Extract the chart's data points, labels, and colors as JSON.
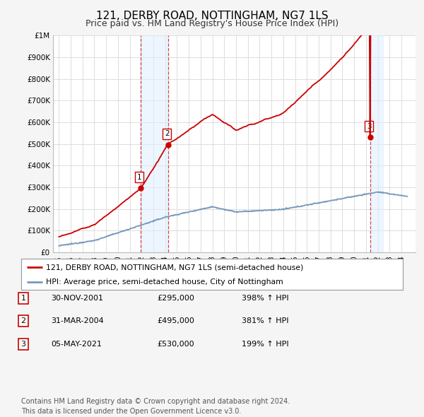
{
  "title": "121, DERBY ROAD, NOTTINGHAM, NG7 1LS",
  "subtitle": "Price paid vs. HM Land Registry's House Price Index (HPI)",
  "title_fontsize": 11,
  "subtitle_fontsize": 9,
  "ylim": [
    0,
    1000000
  ],
  "yticks": [
    0,
    100000,
    200000,
    300000,
    400000,
    500000,
    600000,
    700000,
    800000,
    900000,
    1000000
  ],
  "ytick_labels": [
    "£0",
    "£100K",
    "£200K",
    "£300K",
    "£400K",
    "£500K",
    "£600K",
    "£700K",
    "£800K",
    "£900K",
    "£1M"
  ],
  "background_color": "#f5f5f5",
  "plot_bg_color": "#ffffff",
  "grid_color": "#dddddd",
  "red_line_color": "#cc0000",
  "blue_line_color": "#7799bb",
  "marker_color": "#cc0000",
  "sale_points": [
    {
      "date": 2001.92,
      "price": 295000,
      "label": "1"
    },
    {
      "date": 2004.25,
      "price": 495000,
      "label": "2"
    },
    {
      "date": 2021.37,
      "price": 530000,
      "label": "3"
    }
  ],
  "vline_color": "#cc0000",
  "shade_color": "#ddeeff",
  "shade_alpha": 0.5,
  "legend_entries": [
    "121, DERBY ROAD, NOTTINGHAM, NG7 1LS (semi-detached house)",
    "HPI: Average price, semi-detached house, City of Nottingham"
  ],
  "table_rows": [
    [
      "1",
      "30-NOV-2001",
      "£295,000",
      "398% ↑ HPI"
    ],
    [
      "2",
      "31-MAR-2004",
      "£495,000",
      "381% ↑ HPI"
    ],
    [
      "3",
      "05-MAY-2021",
      "£530,000",
      "199% ↑ HPI"
    ]
  ],
  "footnote": "Contains HM Land Registry data © Crown copyright and database right 2024.\nThis data is licensed under the Open Government Licence v3.0.",
  "footnote_fontsize": 7
}
